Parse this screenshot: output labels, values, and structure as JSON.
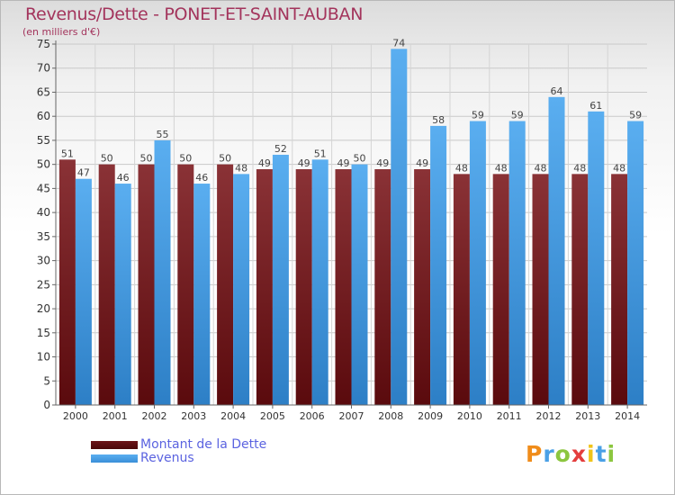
{
  "chart_data": {
    "type": "bar",
    "title": "Revenus/Dette - PONET-ET-SAINT-AUBAN",
    "subtitle": "(en milliers d'€)",
    "categories": [
      "2000",
      "2001",
      "2002",
      "2003",
      "2004",
      "2005",
      "2006",
      "2007",
      "2008",
      "2009",
      "2010",
      "2011",
      "2012",
      "2013",
      "2014"
    ],
    "series": [
      {
        "name": "Montant de la Dette",
        "color": "#6b1418",
        "values": [
          51,
          50,
          50,
          50,
          50,
          49,
          49,
          49,
          49,
          49,
          48,
          48,
          48,
          48,
          48
        ]
      },
      {
        "name": "Revenus",
        "color": "#4a9fe2",
        "values": [
          47,
          46,
          55,
          46,
          48,
          52,
          51,
          50,
          74,
          58,
          59,
          59,
          64,
          61,
          59
        ]
      }
    ],
    "ylim": [
      0,
      75
    ],
    "yticks": [
      0,
      5,
      10,
      15,
      20,
      25,
      30,
      35,
      40,
      45,
      50,
      55,
      60,
      65,
      70,
      75
    ],
    "grid": true,
    "legend_position": "bottom-left"
  },
  "branding": {
    "logo_letters": [
      "P",
      "r",
      "o",
      "x",
      "i",
      "t",
      "i"
    ],
    "logo_colors": [
      "#f08c1a",
      "#4aa0e6",
      "#8cc63f",
      "#e43d3d",
      "#f0c419",
      "#4aa0e6",
      "#8cc63f"
    ]
  }
}
